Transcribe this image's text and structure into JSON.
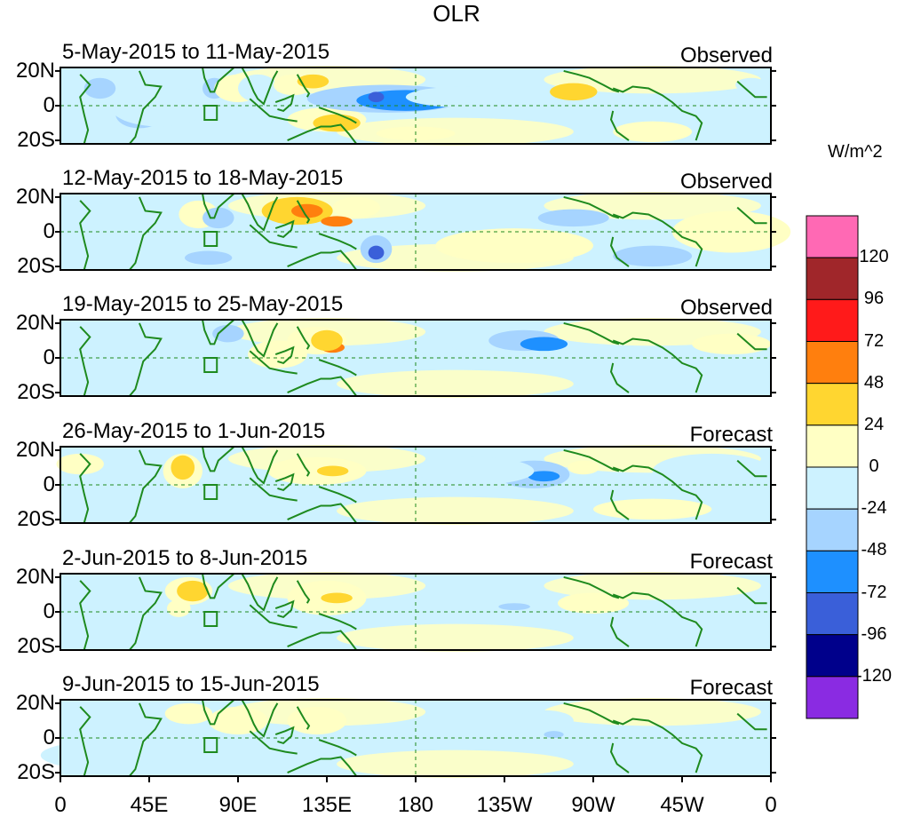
{
  "title": "OLR",
  "lat_labels": [
    "20N",
    "0",
    "20S"
  ],
  "lon_labels": [
    "0",
    "45E",
    "90E",
    "135E",
    "180",
    "135W",
    "90W",
    "45W",
    "0"
  ],
  "panels": [
    {
      "period": "5-May-2015 to 11-May-2015",
      "type": "Observed",
      "anomalies": [
        {
          "lon": 20,
          "lat": 10,
          "rlon": 8,
          "rlat": 6,
          "level": -2
        },
        {
          "lon": 25,
          "lat": -3,
          "rlon": 10,
          "rlat": 5,
          "level": -1
        },
        {
          "lon": 40,
          "lat": -5,
          "rlon": 12,
          "rlat": 8,
          "level": -2
        },
        {
          "lon": 50,
          "lat": 0,
          "rlon": 25,
          "rlat": 12,
          "level": -1
        },
        {
          "lon": 78,
          "lat": 10,
          "rlon": 6,
          "rlat": 6,
          "level": -2
        },
        {
          "lon": 90,
          "lat": 10,
          "rlon": 12,
          "rlat": 8,
          "level": 1
        },
        {
          "lon": 100,
          "lat": 10,
          "rlon": 10,
          "rlat": 8,
          "level": -1
        },
        {
          "lon": 118,
          "lat": 12,
          "rlon": 10,
          "rlat": 6,
          "level": 1
        },
        {
          "lon": 128,
          "lat": 14,
          "rlon": 8,
          "rlat": 4,
          "level": 2
        },
        {
          "lon": 135,
          "lat": -8,
          "rlon": 20,
          "rlat": 7,
          "level": 1
        },
        {
          "lon": 140,
          "lat": -10,
          "rlon": 12,
          "rlat": 5,
          "level": 2
        },
        {
          "lon": 165,
          "lat": 4,
          "rlon": 40,
          "rlat": 8,
          "level": -2
        },
        {
          "lon": 175,
          "lat": 3,
          "rlon": 25,
          "rlat": 6,
          "level": -3
        },
        {
          "lon": 160,
          "lat": 5,
          "rlon": 4,
          "rlat": 3,
          "level": -4
        },
        {
          "lon": 205,
          "lat": 5,
          "rlon": 30,
          "rlat": 6,
          "level": -1
        },
        {
          "lon": 260,
          "lat": 8,
          "rlon": 12,
          "rlat": 5,
          "level": 2
        },
        {
          "lon": 280,
          "lat": -8,
          "rlon": 25,
          "rlat": 10,
          "level": -1
        },
        {
          "lon": 300,
          "lat": -15,
          "rlon": 20,
          "rlat": 6,
          "level": 1
        },
        {
          "lon": 350,
          "lat": 12,
          "rlon": 8,
          "rlat": 4,
          "level": -1
        },
        {
          "lon": 180,
          "lat": -16,
          "rlon": 20,
          "rlat": 4,
          "level": 1
        }
      ]
    },
    {
      "period": "12-May-2015 to 18-May-2015",
      "type": "Observed",
      "anomalies": [
        {
          "lon": 20,
          "lat": 10,
          "rlon": 10,
          "rlat": 6,
          "level": -1
        },
        {
          "lon": 70,
          "lat": 10,
          "rlon": 10,
          "rlat": 8,
          "level": 1
        },
        {
          "lon": 80,
          "lat": 8,
          "rlon": 8,
          "rlat": 6,
          "level": -2
        },
        {
          "lon": 120,
          "lat": 12,
          "rlon": 18,
          "rlat": 8,
          "level": 2
        },
        {
          "lon": 125,
          "lat": 12,
          "rlon": 8,
          "rlat": 4,
          "level": 3
        },
        {
          "lon": 140,
          "lat": 6,
          "rlon": 8,
          "rlat": 3,
          "level": 3
        },
        {
          "lon": 150,
          "lat": 14,
          "rlon": 12,
          "rlat": 6,
          "level": 1
        },
        {
          "lon": 160,
          "lat": -10,
          "rlon": 8,
          "rlat": 8,
          "level": -2
        },
        {
          "lon": 160,
          "lat": -12,
          "rlon": 4,
          "rlat": 4,
          "level": -4
        },
        {
          "lon": 75,
          "lat": -15,
          "rlon": 12,
          "rlat": 4,
          "level": -2
        },
        {
          "lon": 220,
          "lat": 8,
          "rlon": 40,
          "rlat": 6,
          "level": -1
        },
        {
          "lon": 260,
          "lat": 8,
          "rlon": 18,
          "rlat": 5,
          "level": -2
        },
        {
          "lon": 300,
          "lat": -14,
          "rlon": 20,
          "rlat": 6,
          "level": -2
        },
        {
          "lon": 230,
          "lat": -8,
          "rlon": 40,
          "rlat": 10,
          "level": 1
        },
        {
          "lon": 340,
          "lat": 0,
          "rlon": 30,
          "rlat": 12,
          "level": 1
        }
      ]
    },
    {
      "period": "19-May-2015 to 25-May-2015",
      "type": "Observed",
      "anomalies": [
        {
          "lon": 20,
          "lat": 5,
          "rlon": 12,
          "rlat": 8,
          "level": -1
        },
        {
          "lon": 60,
          "lat": 4,
          "rlon": 12,
          "rlat": 8,
          "level": -1
        },
        {
          "lon": 85,
          "lat": 14,
          "rlon": 8,
          "rlat": 5,
          "level": -2
        },
        {
          "lon": 110,
          "lat": 2,
          "rlon": 15,
          "rlat": 8,
          "level": 1
        },
        {
          "lon": 130,
          "lat": 10,
          "rlon": 15,
          "rlat": 8,
          "level": 1
        },
        {
          "lon": 138,
          "lat": 6,
          "rlon": 6,
          "rlat": 3,
          "level": 3
        },
        {
          "lon": 135,
          "lat": 10,
          "rlon": 8,
          "rlat": 6,
          "level": 2
        },
        {
          "lon": 160,
          "lat": 0,
          "rlon": 18,
          "rlat": 6,
          "level": -1
        },
        {
          "lon": 220,
          "lat": 10,
          "rlon": 25,
          "rlat": 8,
          "level": -1
        },
        {
          "lon": 235,
          "lat": 10,
          "rlon": 18,
          "rlat": 6,
          "level": -2
        },
        {
          "lon": 245,
          "lat": 8,
          "rlon": 12,
          "rlat": 4,
          "level": -3
        },
        {
          "lon": 290,
          "lat": -12,
          "rlon": 30,
          "rlat": 8,
          "level": -1
        },
        {
          "lon": 340,
          "lat": 8,
          "rlon": 20,
          "rlat": 6,
          "level": 1
        }
      ]
    },
    {
      "period": "26-May-2015 to 1-Jun-2015",
      "type": "Forecast",
      "anomalies": [
        {
          "lon": 10,
          "lat": 12,
          "rlon": 12,
          "rlat": 6,
          "level": 1
        },
        {
          "lon": 62,
          "lat": 8,
          "rlon": 10,
          "rlat": 10,
          "level": 1
        },
        {
          "lon": 62,
          "lat": 10,
          "rlon": 6,
          "rlat": 7,
          "level": 2
        },
        {
          "lon": 85,
          "lat": 2,
          "rlon": 12,
          "rlat": 10,
          "level": -1
        },
        {
          "lon": 130,
          "lat": 8,
          "rlon": 25,
          "rlat": 8,
          "level": 1
        },
        {
          "lon": 138,
          "lat": 8,
          "rlon": 8,
          "rlat": 3,
          "level": 2
        },
        {
          "lon": 120,
          "lat": -12,
          "rlon": 20,
          "rlat": 6,
          "level": -1
        },
        {
          "lon": 240,
          "lat": 6,
          "rlon": 18,
          "rlat": 8,
          "level": -2
        },
        {
          "lon": 245,
          "lat": 5,
          "rlon": 8,
          "rlat": 3,
          "level": -3
        },
        {
          "lon": 210,
          "lat": 8,
          "rlon": 30,
          "rlat": 8,
          "level": -1
        },
        {
          "lon": 265,
          "lat": 10,
          "rlon": 8,
          "rlat": 4,
          "level": 1
        },
        {
          "lon": 330,
          "lat": 8,
          "rlon": 30,
          "rlat": 10,
          "level": -1
        },
        {
          "lon": 300,
          "lat": -14,
          "rlon": 30,
          "rlat": 6,
          "level": 1
        }
      ]
    },
    {
      "period": "2-Jun-2015 to 8-Jun-2015",
      "type": "Forecast",
      "anomalies": [
        {
          "lon": 65,
          "lat": 12,
          "rlon": 12,
          "rlat": 8,
          "level": 1
        },
        {
          "lon": 67,
          "lat": 12,
          "rlon": 8,
          "rlat": 6,
          "level": 2
        },
        {
          "lon": 60,
          "lat": 2,
          "rlon": 6,
          "rlat": 5,
          "level": 1
        },
        {
          "lon": 135,
          "lat": 8,
          "rlon": 20,
          "rlat": 10,
          "level": 1
        },
        {
          "lon": 140,
          "lat": 8,
          "rlon": 8,
          "rlat": 3,
          "level": 2
        },
        {
          "lon": 200,
          "lat": 2,
          "rlon": 45,
          "rlat": 4,
          "level": -1
        },
        {
          "lon": 230,
          "lat": 3,
          "rlon": 8,
          "rlat": 2,
          "level": -2
        },
        {
          "lon": 170,
          "lat": 4,
          "rlon": 8,
          "rlat": 3,
          "level": -1
        },
        {
          "lon": 270,
          "lat": 5,
          "rlon": 18,
          "rlat": 6,
          "level": 1
        },
        {
          "lon": 330,
          "lat": -10,
          "rlon": 30,
          "rlat": 8,
          "level": -1
        }
      ]
    },
    {
      "period": "9-Jun-2015 to 15-Jun-2015",
      "type": "Forecast",
      "anomalies": [
        {
          "lon": 65,
          "lat": 14,
          "rlon": 12,
          "rlat": 6,
          "level": 1
        },
        {
          "lon": 90,
          "lat": 10,
          "rlon": 15,
          "rlat": 8,
          "level": 1
        },
        {
          "lon": 130,
          "lat": 10,
          "rlon": 15,
          "rlat": 8,
          "level": 1
        },
        {
          "lon": 210,
          "lat": 2,
          "rlon": 40,
          "rlat": 4,
          "level": -1
        },
        {
          "lon": 245,
          "lat": 10,
          "rlon": 15,
          "rlat": 6,
          "level": -1
        },
        {
          "lon": 250,
          "lat": 2,
          "rlon": 5,
          "rlat": 2,
          "level": -2
        },
        {
          "lon": 300,
          "lat": -10,
          "rlon": 40,
          "rlat": 10,
          "level": -1
        },
        {
          "lon": 20,
          "lat": -10,
          "rlon": 30,
          "rlat": 8,
          "level": -1
        }
      ]
    }
  ],
  "colorbar": {
    "units": "W/m^2",
    "colors": [
      "#ff69b4",
      "#a0262a",
      "#ff1a1a",
      "#ff7f0e",
      "#ffd630",
      "#ffffc4",
      "#cdf2ff",
      "#a6d4ff",
      "#1e90ff",
      "#3a5fd9",
      "#00008b",
      "#8a2be2"
    ],
    "ticks": [
      "120",
      "96",
      "72",
      "48",
      "24",
      "0",
      "-24",
      "-48",
      "-72",
      "-96",
      "-120"
    ]
  },
  "level_colors": {
    "4": "#ff1a1a",
    "3": "#ff7f0e",
    "2": "#ffd630",
    "1": "#ffffc4",
    "-1": "#cdf2ff",
    "-2": "#a6d4ff",
    "-3": "#1e90ff",
    "-4": "#3a5fd9"
  },
  "palette": {
    "coast": "#1e8a1e",
    "background": "#cdf2ff",
    "positive_bg": "#ffffc4",
    "axis": "#000000"
  }
}
